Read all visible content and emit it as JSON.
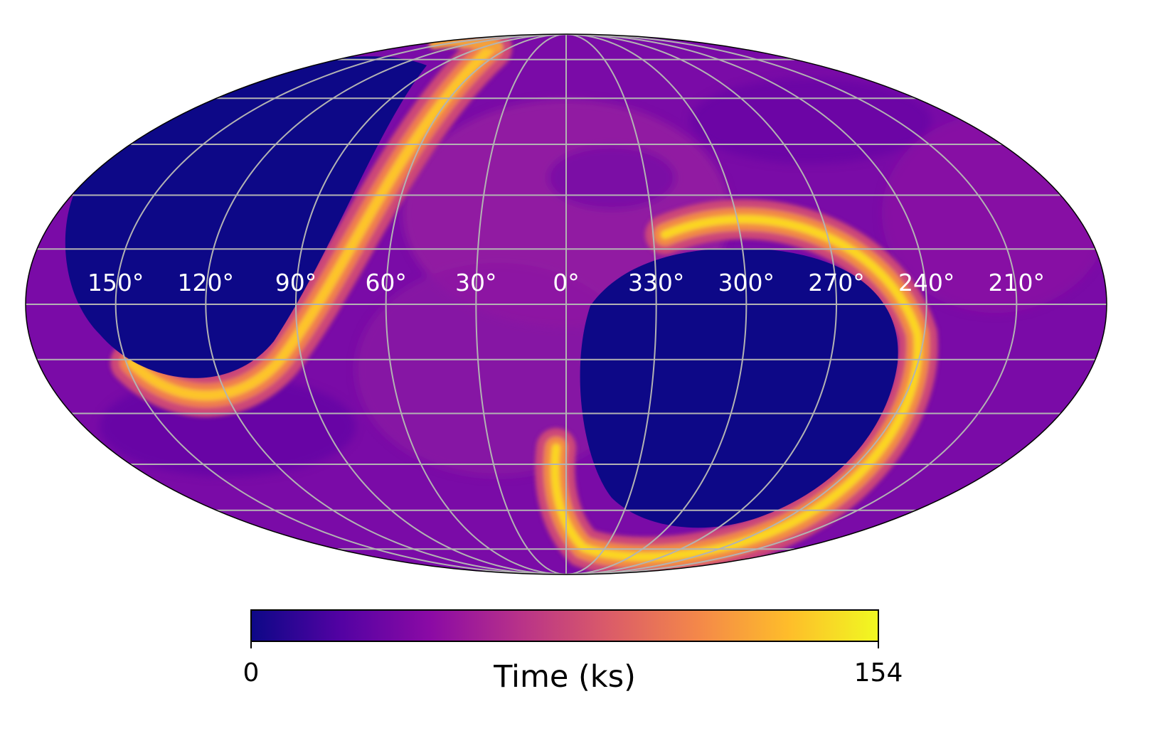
{
  "chart_data": {
    "type": "heatmap",
    "projection": "mollweide",
    "colormap": "plasma",
    "colormap_stops": [
      "#0d0887",
      "#5302a3",
      "#8b0aa5",
      "#b83289",
      "#db5c68",
      "#f48849",
      "#febd2a",
      "#f0f921"
    ],
    "grid": true,
    "meridian_spacing_deg": 30,
    "parallel_spacing_deg": 15,
    "longitude_tick_labels": [
      "150°",
      "120°",
      "90°",
      "60°",
      "30°",
      "0°",
      "330°",
      "300°",
      "270°",
      "240°",
      "210°"
    ],
    "colorbar": {
      "label": "Time (ks)",
      "min_label": "0",
      "max_label": "154",
      "vmin": 0,
      "vmax": 154,
      "orientation": "horizontal",
      "placement": "bottom"
    },
    "features": [
      {
        "kind": "zero-exposure region",
        "center_lon_deg": 105,
        "center_lat_deg": 35,
        "value": 0
      },
      {
        "kind": "zero-exposure region",
        "center_lon_deg": 290,
        "center_lat_deg": -30,
        "value": 0
      },
      {
        "kind": "high-exposure ring",
        "peak_value": 154
      },
      {
        "kind": "background",
        "typical_value": 45
      }
    ]
  }
}
